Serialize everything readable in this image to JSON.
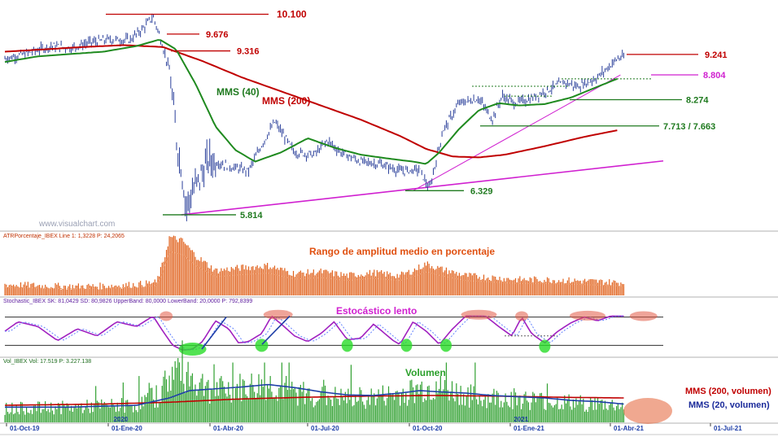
{
  "chart_data": {
    "type": "line",
    "watermark": "www.visualchart.com",
    "x_ticks": [
      "01-Oct-19",
      "01-Ene-20",
      "01-Abr-20",
      "01-Jul-20",
      "01-Oct-20",
      "01-Ene-21",
      "01-Abr-21",
      "01-Jul-21"
    ],
    "year_labels": [
      "2020",
      "2021"
    ],
    "price_panel": {
      "ylim": [
        5500,
        10300
      ],
      "levels": [
        {
          "label": "10.100",
          "value": 10100,
          "color": "#c00000"
        },
        {
          "label": "9.676",
          "value": 9676,
          "color": "#c00000"
        },
        {
          "label": "9.316",
          "value": 9316,
          "color": "#c00000"
        },
        {
          "label": "9.241",
          "value": 9241,
          "color": "#c00000"
        },
        {
          "label": "8.804",
          "value": 8804,
          "color": "#d020d0"
        },
        {
          "label": "8.274",
          "value": 8274,
          "color": "#1f7a1f"
        },
        {
          "label": "7.713 / 7.663",
          "value": 7713,
          "color": "#1f7a1f"
        },
        {
          "label": "6.329",
          "value": 6329,
          "color": "#1f7a1f"
        },
        {
          "label": "5.814",
          "value": 5814,
          "color": "#1f7a1f"
        }
      ],
      "annotations": [
        {
          "text": "MMS (40)",
          "color": "#1f7a1f"
        },
        {
          "text": "MMS (200)",
          "color": "#c00000"
        }
      ],
      "series": [
        {
          "name": "IBEX",
          "color": "#1f3fa8",
          "anchors": [
            [
              0,
              9150
            ],
            [
              0.03,
              9250
            ],
            [
              0.07,
              9420
            ],
            [
              0.1,
              9380
            ],
            [
              0.13,
              9500
            ],
            [
              0.16,
              9560
            ],
            [
              0.19,
              9550
            ],
            [
              0.21,
              9800
            ],
            [
              0.225,
              10050
            ],
            [
              0.235,
              9650
            ],
            [
              0.25,
              8900
            ],
            [
              0.26,
              7500
            ],
            [
              0.27,
              6600
            ],
            [
              0.275,
              6000
            ],
            [
              0.285,
              6300
            ],
            [
              0.31,
              7000
            ],
            [
              0.34,
              6850
            ],
            [
              0.37,
              6750
            ],
            [
              0.39,
              7300
            ],
            [
              0.41,
              7800
            ],
            [
              0.44,
              7150
            ],
            [
              0.47,
              7100
            ],
            [
              0.49,
              7400
            ],
            [
              0.51,
              7150
            ],
            [
              0.54,
              6950
            ],
            [
              0.57,
              6900
            ],
            [
              0.6,
              6750
            ],
            [
              0.63,
              6780
            ],
            [
              0.645,
              6350
            ],
            [
              0.665,
              7600
            ],
            [
              0.69,
              8200
            ],
            [
              0.72,
              8300
            ],
            [
              0.74,
              7850
            ],
            [
              0.755,
              8350
            ],
            [
              0.775,
              8200
            ],
            [
              0.8,
              8300
            ],
            [
              0.82,
              8450
            ],
            [
              0.85,
              8650
            ],
            [
              0.87,
              8550
            ],
            [
              0.9,
              8750
            ],
            [
              0.93,
              9150
            ],
            [
              0.94,
              9180
            ]
          ]
        },
        {
          "name": "MMS (40)",
          "color": "#1f8a1f",
          "anchors": [
            [
              0,
              9080
            ],
            [
              0.05,
              9200
            ],
            [
              0.1,
              9250
            ],
            [
              0.15,
              9300
            ],
            [
              0.2,
              9420
            ],
            [
              0.235,
              9560
            ],
            [
              0.26,
              9350
            ],
            [
              0.29,
              8600
            ],
            [
              0.32,
              7700
            ],
            [
              0.35,
              7200
            ],
            [
              0.38,
              6950
            ],
            [
              0.42,
              7150
            ],
            [
              0.46,
              7450
            ],
            [
              0.5,
              7250
            ],
            [
              0.54,
              7100
            ],
            [
              0.58,
              7020
            ],
            [
              0.62,
              6950
            ],
            [
              0.64,
              6900
            ],
            [
              0.66,
              7150
            ],
            [
              0.69,
              7650
            ],
            [
              0.72,
              8050
            ],
            [
              0.75,
              8200
            ],
            [
              0.78,
              8150
            ],
            [
              0.82,
              8180
            ],
            [
              0.86,
              8320
            ],
            [
              0.9,
              8550
            ],
            [
              0.93,
              8720
            ]
          ]
        },
        {
          "name": "MMS (200)",
          "color": "#c00000",
          "anchors": [
            [
              0,
              9300
            ],
            [
              0.06,
              9350
            ],
            [
              0.12,
              9400
            ],
            [
              0.18,
              9440
            ],
            [
              0.24,
              9400
            ],
            [
              0.3,
              9100
            ],
            [
              0.36,
              8750
            ],
            [
              0.42,
              8450
            ],
            [
              0.48,
              8150
            ],
            [
              0.54,
              7850
            ],
            [
              0.6,
              7500
            ],
            [
              0.64,
              7220
            ],
            [
              0.68,
              7060
            ],
            [
              0.72,
              7040
            ],
            [
              0.76,
              7100
            ],
            [
              0.82,
              7280
            ],
            [
              0.88,
              7480
            ],
            [
              0.93,
              7620
            ]
          ]
        }
      ],
      "trendlines": [
        {
          "color": "#d020d0",
          "from": [
            0.268,
            5814
          ],
          "to": [
            1.0,
            6965
          ]
        },
        {
          "color": "#d020d0",
          "from": [
            0.62,
            6329
          ],
          "to": [
            0.935,
            8804
          ]
        }
      ]
    },
    "atr_panel": {
      "header": "ATRPorcentaje_IBEX Line 1: 1,3228 P: 24,2065",
      "title": "Rango de amplitud medio en porcentaje",
      "ylim": [
        0,
        6
      ],
      "series": [
        {
          "name": "ATRPorcentaje",
          "color": "#e05010",
          "anchors": [
            [
              0,
              1.1
            ],
            [
              0.05,
              1.0
            ],
            [
              0.1,
              0.9
            ],
            [
              0.15,
              0.95
            ],
            [
              0.2,
              1.1
            ],
            [
              0.23,
              1.3
            ],
            [
              0.24,
              3.2
            ],
            [
              0.25,
              5.9
            ],
            [
              0.27,
              5.5
            ],
            [
              0.29,
              4.0
            ],
            [
              0.32,
              2.5
            ],
            [
              0.36,
              2.8
            ],
            [
              0.4,
              3.0
            ],
            [
              0.44,
              2.2
            ],
            [
              0.48,
              2.4
            ],
            [
              0.52,
              2.0
            ],
            [
              0.56,
              2.3
            ],
            [
              0.6,
              2.0
            ],
            [
              0.62,
              2.5
            ],
            [
              0.64,
              3.2
            ],
            [
              0.66,
              2.7
            ],
            [
              0.7,
              2.0
            ],
            [
              0.74,
              1.8
            ],
            [
              0.78,
              1.6
            ],
            [
              0.82,
              1.6
            ],
            [
              0.86,
              1.5
            ],
            [
              0.9,
              1.4
            ],
            [
              0.93,
              1.3
            ]
          ]
        }
      ]
    },
    "stoch_panel": {
      "header": "Stochastic_IBEX SK: 81,0429 SD: 80,9826 UpperBand: 80,0000 LowerBand: 20,0000 P: 792,8399",
      "title": "Estocástico lento",
      "bands": [
        80,
        20
      ],
      "ylim": [
        0,
        100
      ],
      "series": [
        {
          "name": "SK",
          "color": "#a020c0",
          "anchors": [
            [
              0,
              50
            ],
            [
              0.02,
              70
            ],
            [
              0.05,
              60
            ],
            [
              0.08,
              30
            ],
            [
              0.11,
              55
            ],
            [
              0.14,
              40
            ],
            [
              0.17,
              70
            ],
            [
              0.2,
              60
            ],
            [
              0.225,
              82
            ],
            [
              0.24,
              50
            ],
            [
              0.255,
              20
            ],
            [
              0.27,
              10
            ],
            [
              0.285,
              12
            ],
            [
              0.3,
              28
            ],
            [
              0.32,
              72
            ],
            [
              0.34,
              55
            ],
            [
              0.355,
              25
            ],
            [
              0.37,
              28
            ],
            [
              0.39,
              45
            ],
            [
              0.405,
              82
            ],
            [
              0.42,
              65
            ],
            [
              0.44,
              40
            ],
            [
              0.46,
              28
            ],
            [
              0.48,
              45
            ],
            [
              0.5,
              70
            ],
            [
              0.52,
              32
            ],
            [
              0.54,
              35
            ],
            [
              0.56,
              65
            ],
            [
              0.59,
              30
            ],
            [
              0.6,
              22
            ],
            [
              0.62,
              70
            ],
            [
              0.64,
              50
            ],
            [
              0.66,
              22
            ],
            [
              0.68,
              55
            ],
            [
              0.7,
              82
            ],
            [
              0.73,
              82
            ],
            [
              0.75,
              60
            ],
            [
              0.77,
              40
            ],
            [
              0.785,
              80
            ],
            [
              0.8,
              45
            ],
            [
              0.82,
              25
            ],
            [
              0.84,
              50
            ],
            [
              0.86,
              68
            ],
            [
              0.88,
              80
            ],
            [
              0.9,
              72
            ],
            [
              0.92,
              82
            ],
            [
              0.94,
              82
            ]
          ]
        }
      ]
    },
    "volume_panel": {
      "header": "Vol_IBEX Vol: 17.519 P: 3.227.138",
      "title": "Volumen",
      "ylim": [
        0,
        100
      ],
      "series": [
        {
          "name": "Volumen",
          "color": "#2ca02c",
          "anchors": [
            [
              0,
              22
            ],
            [
              0.1,
              24
            ],
            [
              0.2,
              28
            ],
            [
              0.235,
              45
            ],
            [
              0.25,
              75
            ],
            [
              0.27,
              90
            ],
            [
              0.29,
              65
            ],
            [
              0.32,
              50
            ],
            [
              0.36,
              55
            ],
            [
              0.4,
              60
            ],
            [
              0.44,
              48
            ],
            [
              0.48,
              42
            ],
            [
              0.52,
              38
            ],
            [
              0.56,
              40
            ],
            [
              0.6,
              45
            ],
            [
              0.64,
              55
            ],
            [
              0.68,
              50
            ],
            [
              0.72,
              38
            ],
            [
              0.76,
              40
            ],
            [
              0.8,
              36
            ],
            [
              0.84,
              32
            ],
            [
              0.88,
              30
            ],
            [
              0.92,
              28
            ],
            [
              0.94,
              26
            ]
          ]
        },
        {
          "name": "MMS (20, volumen)",
          "color": "#1f3fa8",
          "anchors": [
            [
              0,
              25
            ],
            [
              0.1,
              25
            ],
            [
              0.2,
              28
            ],
            [
              0.25,
              40
            ],
            [
              0.28,
              52
            ],
            [
              0.32,
              55
            ],
            [
              0.36,
              58
            ],
            [
              0.4,
              62
            ],
            [
              0.44,
              57
            ],
            [
              0.48,
              50
            ],
            [
              0.52,
              45
            ],
            [
              0.56,
              44
            ],
            [
              0.6,
              48
            ],
            [
              0.63,
              52
            ],
            [
              0.66,
              50
            ],
            [
              0.7,
              48
            ],
            [
              0.74,
              44
            ],
            [
              0.78,
              42
            ],
            [
              0.82,
              40
            ],
            [
              0.86,
              36
            ],
            [
              0.9,
              34
            ],
            [
              0.94,
              30
            ]
          ]
        },
        {
          "name": "MMS (200, volumen)",
          "color": "#c00000",
          "anchors": [
            [
              0,
              28
            ],
            [
              0.15,
              30
            ],
            [
              0.25,
              33
            ],
            [
              0.35,
              38
            ],
            [
              0.45,
              41
            ],
            [
              0.55,
              43
            ],
            [
              0.65,
              44
            ],
            [
              0.75,
              43
            ],
            [
              0.85,
              41
            ],
            [
              0.94,
              40
            ]
          ]
        }
      ]
    }
  }
}
